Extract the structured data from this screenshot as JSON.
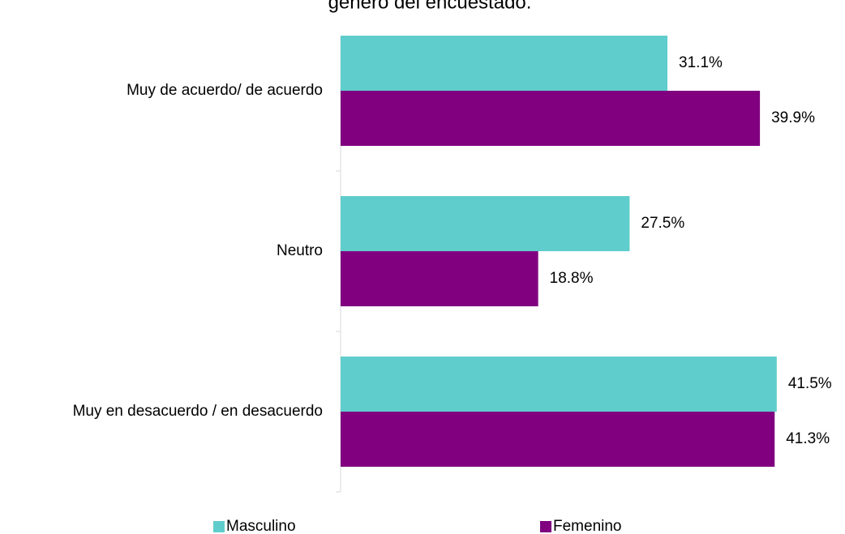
{
  "chart_data": {
    "type": "bar",
    "orientation": "horizontal",
    "title": "género del encuestado.",
    "categories": [
      "Muy de acuerdo/ de acuerdo",
      "Neutro",
      "Muy en desacuerdo / en desacuerdo"
    ],
    "series": [
      {
        "name": "Masculino",
        "color": "#5fcdcc",
        "values": [
          31.1,
          27.5,
          41.5
        ],
        "value_labels": [
          "31.1%",
          "27.5%",
          "41.5%"
        ]
      },
      {
        "name": "Femenino",
        "color": "#800080",
        "values": [
          39.9,
          18.8,
          41.3
        ],
        "value_labels": [
          "39.9%",
          "18.8%",
          "41.3%"
        ]
      }
    ]
  }
}
